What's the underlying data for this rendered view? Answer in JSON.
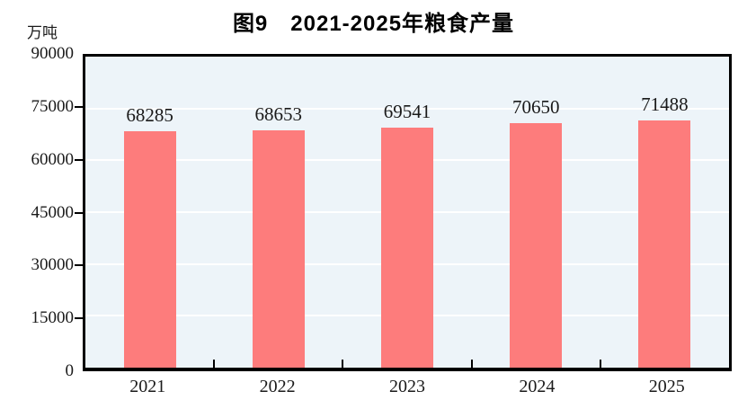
{
  "figure": {
    "title": "图9　2021-2025年粮食产量",
    "unit_label": "万吨"
  },
  "chart_data": {
    "type": "bar",
    "title": "图9　2021-2025年粮食产量",
    "categories": [
      "2021",
      "2022",
      "2023",
      "2024",
      "2025"
    ],
    "values": [
      68285,
      68653,
      69541,
      70650,
      71488
    ],
    "xlabel": "",
    "ylabel": "万吨",
    "ylim": [
      0,
      90000
    ],
    "yticks": [
      0,
      15000,
      30000,
      45000,
      60000,
      75000,
      90000
    ],
    "grid": true,
    "legend": "none",
    "colors": {
      "bar": "#fd7c7c",
      "plot_background": "#edf4f9",
      "gridline": "#ffffff",
      "axis": "#000000",
      "text": "#1a1a1a"
    }
  }
}
